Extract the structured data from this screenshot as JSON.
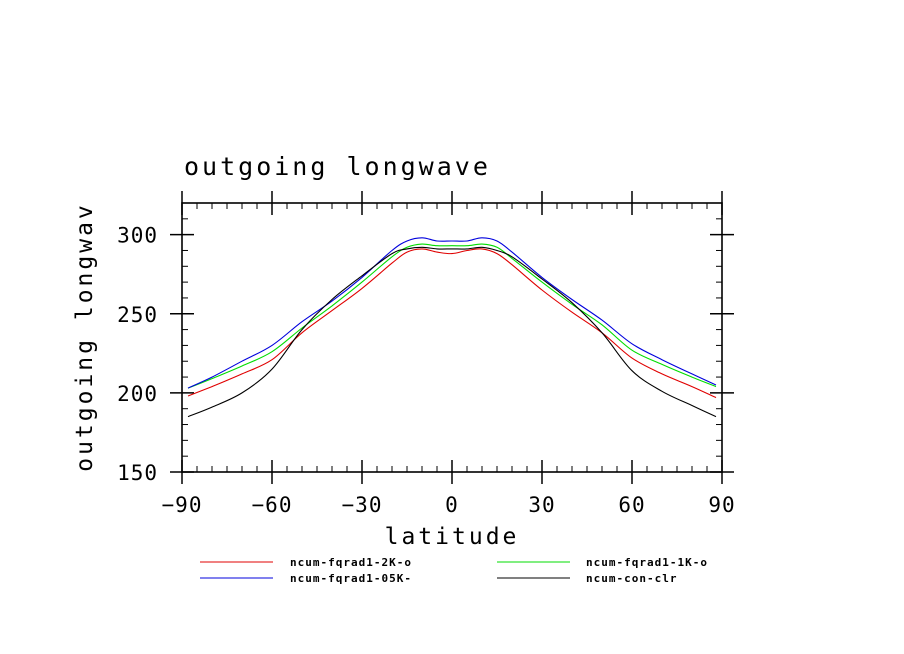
{
  "chart_data": {
    "type": "line",
    "title": "outgoing longwave",
    "xlabel": "latitude",
    "ylabel": "outgoing longwav",
    "xlim": [
      -90,
      90
    ],
    "ylim": [
      150,
      320
    ],
    "x_ticks": [
      -90,
      -60,
      -30,
      0,
      30,
      60,
      90
    ],
    "y_ticks": [
      150,
      200,
      250,
      300
    ],
    "x_tick_labels": [
      "−90",
      "−60",
      "−30",
      "0",
      "30",
      "60",
      "90"
    ],
    "y_tick_labels": [
      "150",
      "200",
      "250",
      "300"
    ],
    "grid": false,
    "legend_position": "bottom",
    "x": [
      -88,
      -80,
      -70,
      -60,
      -50,
      -40,
      -30,
      -20,
      -15,
      -10,
      -5,
      0,
      5,
      10,
      15,
      20,
      30,
      40,
      50,
      60,
      70,
      80,
      88
    ],
    "series": [
      {
        "name": "ncum-fqrad1-2K-o",
        "color": "#e00000",
        "values": [
          198,
          204,
          212,
          221,
          238,
          252,
          266,
          282,
          289,
          291,
          289,
          288,
          290,
          291,
          288,
          281,
          265,
          251,
          238,
          222,
          212,
          204,
          197
        ]
      },
      {
        "name": "ncum-fqrad1-1K-o",
        "color": "#00dd00",
        "values": [
          203,
          209,
          217,
          226,
          241,
          255,
          270,
          286,
          292,
          294,
          293,
          293,
          293,
          294,
          292,
          285,
          270,
          256,
          243,
          227,
          218,
          210,
          204
        ]
      },
      {
        "name": "ncum-fqrad1-05K-",
        "color": "#0000dd",
        "values": [
          203,
          210,
          220,
          230,
          245,
          258,
          273,
          290,
          296,
          298,
          296,
          296,
          296,
          298,
          296,
          289,
          273,
          259,
          246,
          231,
          221,
          212,
          205
        ]
      },
      {
        "name": "ncum-con-clr",
        "color": "#000000",
        "values": [
          185,
          191,
          200,
          215,
          240,
          259,
          274,
          288,
          291,
          292,
          291,
          291,
          291,
          292,
          290,
          286,
          272,
          257,
          238,
          214,
          201,
          192,
          185
        ]
      }
    ]
  }
}
